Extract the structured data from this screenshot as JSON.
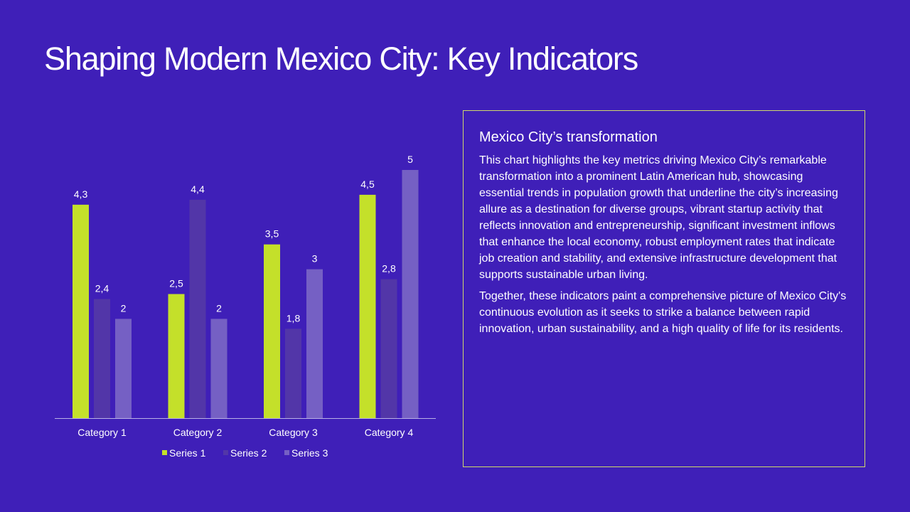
{
  "title": "Shaping Modern Mexico City: Key Indicators",
  "chart_data": {
    "type": "bar",
    "categories": [
      "Category 1",
      "Category 2",
      "Category 3",
      "Category 4"
    ],
    "series": [
      {
        "name": "Series 1",
        "color": "#c4e02a",
        "values": [
          4.3,
          2.5,
          3.5,
          4.5
        ],
        "labels": [
          "4,3",
          "2,5",
          "3,5",
          "4,5"
        ]
      },
      {
        "name": "Series 2",
        "color": "#5236a8",
        "values": [
          2.4,
          4.4,
          1.8,
          2.8
        ],
        "labels": [
          "2,4",
          "4,4",
          "1,8",
          "2,8"
        ]
      },
      {
        "name": "Series 3",
        "color": "#7560c4",
        "values": [
          2,
          2,
          3,
          5
        ],
        "labels": [
          "2",
          "2",
          "3",
          "5"
        ]
      }
    ],
    "ylim": [
      0,
      5
    ],
    "grid": false,
    "legend_position": "bottom",
    "data_labels": true
  },
  "text_box": {
    "heading": "Mexico City’s transformation",
    "paragraphs": [
      "This chart highlights the key metrics driving Mexico City’s remarkable transformation into a prominent Latin American hub, showcasing essential trends in population growth that underline the city’s increasing allure as a destination for diverse groups, vibrant startup activity that reflects innovation and entrepreneurship, significant investment inflows that enhance the local economy, robust employment rates that indicate job creation and stability, and extensive infrastructure development that supports sustainable urban living.",
      "Together, these indicators paint a comprehensive picture of Mexico City's continuous evolution as it seeks to strike a balance between rapid innovation, urban sustainability, and a high quality of life for its residents."
    ],
    "border_color": "#cfd96a"
  },
  "colors": {
    "background": "#3f1fb8",
    "axis": "#b9b0e6"
  }
}
